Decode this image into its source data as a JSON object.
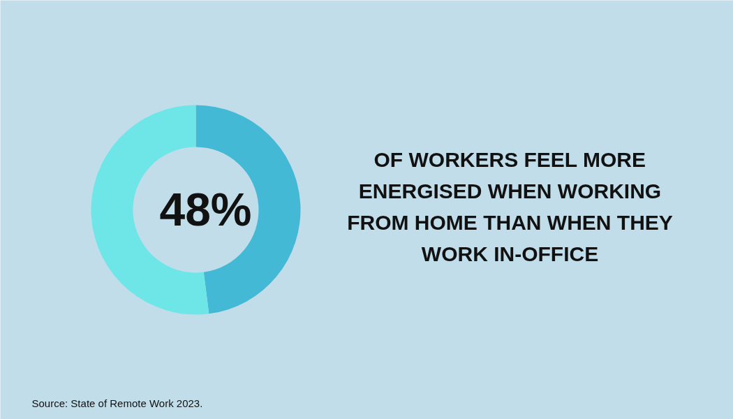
{
  "chart_data": {
    "type": "donut",
    "title": "OF WORKERS FEEL MORE ENERGISED WHEN WORKING FROM HOME THAN WHEN THEY WORK IN-OFFICE",
    "categories": [
      null,
      null
    ],
    "values": [
      48,
      52
    ],
    "colors": [
      "#43b9d6",
      "#6ee6e8"
    ],
    "value_labels": [
      "48%",
      null
    ],
    "annotations": [
      "Source: State of Remote Work 2023."
    ]
  }
}
